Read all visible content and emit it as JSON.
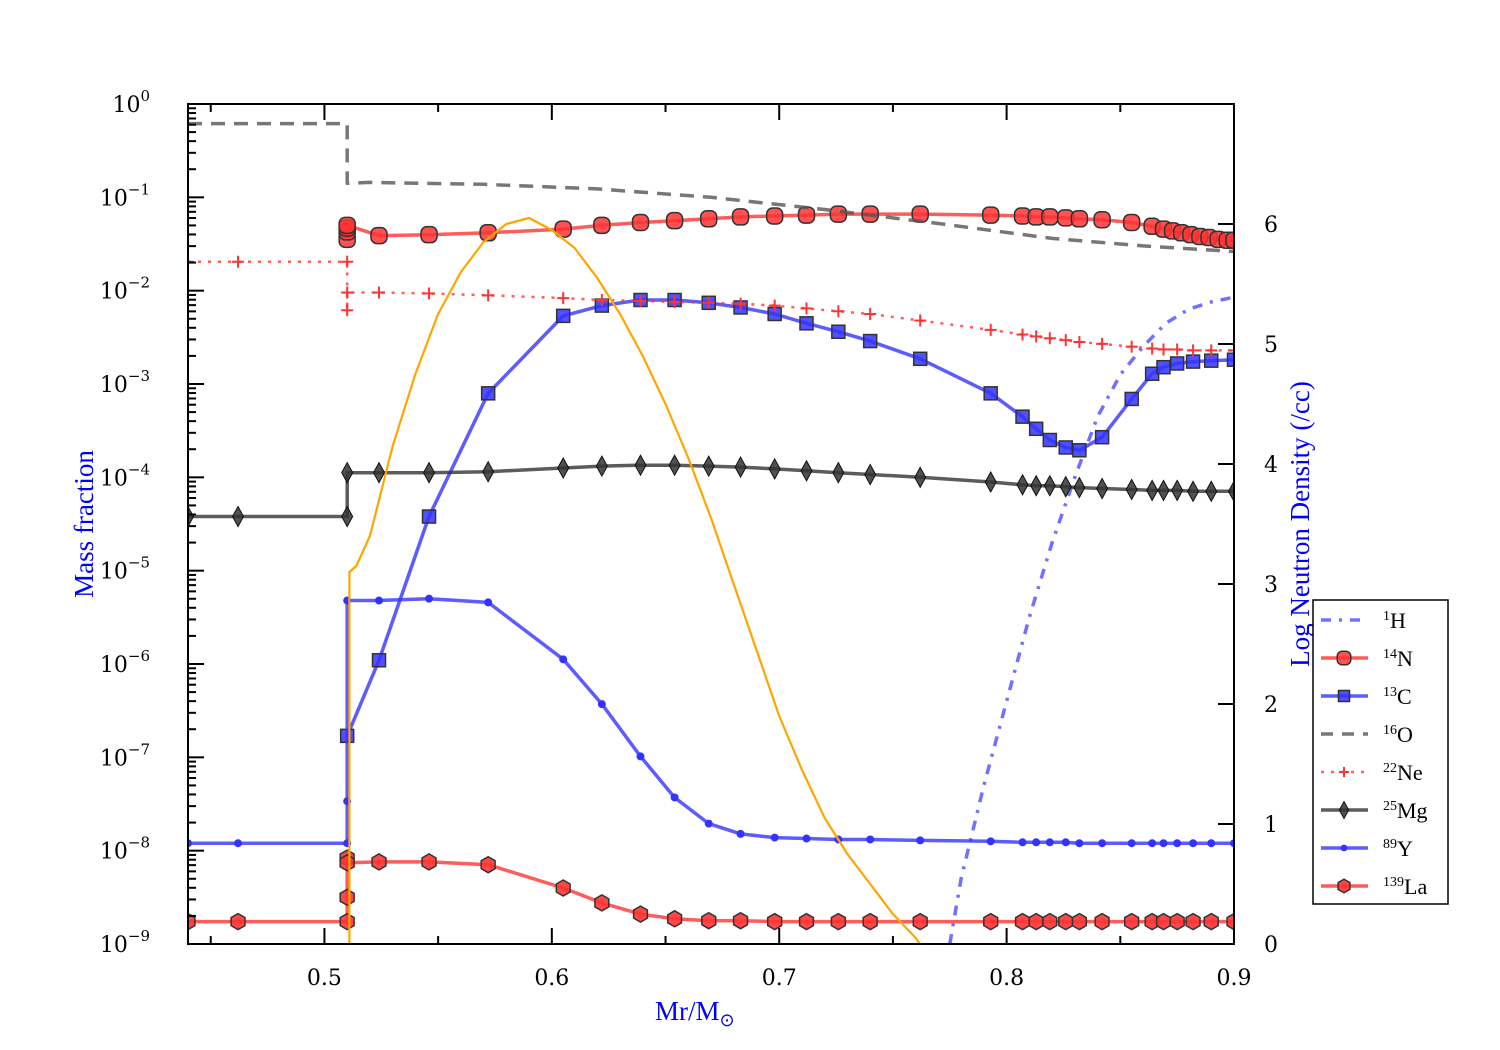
{
  "chart_data": {
    "type": "line",
    "title": "",
    "xlabel": "Mr/M",
    "xlabel_sub": "⊙",
    "ylabel": "Mass fraction",
    "y2label": "Log Neutron Density (/cc)",
    "xlim": [
      0.44,
      0.9
    ],
    "ylim_log10": [
      -9,
      0
    ],
    "y2lim": [
      0,
      7.0
    ],
    "x_ticks": [
      "0.5",
      "0.6",
      "0.7",
      "0.8",
      "0.9"
    ],
    "x_tick_values": [
      0.5,
      0.6,
      0.7,
      0.8,
      0.9
    ],
    "y_ticks": [
      {
        "base": "10",
        "exp": "0",
        "value": 0
      },
      {
        "base": "10",
        "exp": "−1",
        "value": -1
      },
      {
        "base": "10",
        "exp": "−2",
        "value": -2
      },
      {
        "base": "10",
        "exp": "−3",
        "value": -3
      },
      {
        "base": "10",
        "exp": "−4",
        "value": -4
      },
      {
        "base": "10",
        "exp": "−5",
        "value": -5
      },
      {
        "base": "10",
        "exp": "−6",
        "value": -6
      },
      {
        "base": "10",
        "exp": "−7",
        "value": -7
      },
      {
        "base": "10",
        "exp": "−8",
        "value": -8
      },
      {
        "base": "10",
        "exp": "−9",
        "value": -9
      }
    ],
    "y2_ticks": [
      "0",
      "1",
      "2",
      "3",
      "4",
      "5",
      "6"
    ],
    "y2_tick_values": [
      0,
      1,
      2,
      3,
      4,
      5,
      6
    ],
    "grid": false,
    "legend_position": "right",
    "series": [
      {
        "name": "1H",
        "label_sup": "1",
        "label_base": "H",
        "color": "#4d4dff",
        "style": "dashdot",
        "marker": "none",
        "axis": "left",
        "x": [
          0.775,
          0.78,
          0.79,
          0.8,
          0.81,
          0.82,
          0.83,
          0.84,
          0.85,
          0.86,
          0.87,
          0.88,
          0.89,
          0.9
        ],
        "log10_y": [
          -9.0,
          -8.3,
          -7.3,
          -6.4,
          -5.5,
          -4.7,
          -4.0,
          -3.35,
          -2.9,
          -2.6,
          -2.35,
          -2.2,
          -2.12,
          -2.07
        ]
      },
      {
        "name": "14N",
        "label_sup": "14",
        "label_base": "N",
        "color": "#ff3333",
        "style": "solid",
        "marker": "circle",
        "axis": "left",
        "x": [
          0.51,
          0.51,
          0.51,
          0.51,
          0.524,
          0.546,
          0.572,
          0.605,
          0.622,
          0.639,
          0.654,
          0.669,
          0.683,
          0.698,
          0.712,
          0.726,
          0.74,
          0.762,
          0.793,
          0.807,
          0.813,
          0.819,
          0.826,
          0.832,
          0.842,
          0.855,
          0.864,
          0.869,
          0.873,
          0.877,
          0.881,
          0.885,
          0.889,
          0.893,
          0.897,
          0.9
        ],
        "log10_y": [
          -1.45,
          -1.37,
          -1.33,
          -1.3,
          -1.41,
          -1.4,
          -1.38,
          -1.34,
          -1.3,
          -1.27,
          -1.25,
          -1.23,
          -1.21,
          -1.2,
          -1.19,
          -1.18,
          -1.18,
          -1.18,
          -1.19,
          -1.2,
          -1.21,
          -1.21,
          -1.22,
          -1.23,
          -1.24,
          -1.27,
          -1.31,
          -1.34,
          -1.36,
          -1.38,
          -1.4,
          -1.42,
          -1.43,
          -1.45,
          -1.46,
          -1.46
        ]
      },
      {
        "name": "13C",
        "label_sup": "13",
        "label_base": "C",
        "color": "#3333ff",
        "style": "solid",
        "marker": "square",
        "axis": "left",
        "x": [
          0.51,
          0.524,
          0.546,
          0.572,
          0.605,
          0.622,
          0.639,
          0.654,
          0.669,
          0.683,
          0.698,
          0.712,
          0.726,
          0.74,
          0.762,
          0.793,
          0.807,
          0.813,
          0.819,
          0.826,
          0.832,
          0.842,
          0.855,
          0.864,
          0.869,
          0.875,
          0.882,
          0.89,
          0.9
        ],
        "log10_y": [
          -6.77,
          -5.96,
          -4.42,
          -3.1,
          -2.27,
          -2.16,
          -2.1,
          -2.1,
          -2.13,
          -2.18,
          -2.25,
          -2.35,
          -2.44,
          -2.54,
          -2.73,
          -3.1,
          -3.35,
          -3.48,
          -3.6,
          -3.68,
          -3.71,
          -3.57,
          -3.16,
          -2.89,
          -2.82,
          -2.78,
          -2.76,
          -2.75,
          -2.74
        ]
      },
      {
        "name": "16O",
        "label_sup": "16",
        "label_base": "O",
        "color": "#555555",
        "style": "dashed",
        "marker": "none",
        "axis": "left",
        "x": [
          0.44,
          0.51,
          0.51,
          0.52,
          0.57,
          0.62,
          0.67,
          0.72,
          0.77,
          0.82,
          0.86,
          0.9
        ],
        "log10_y": [
          -0.21,
          -0.21,
          -0.85,
          -0.84,
          -0.86,
          -0.91,
          -1.0,
          -1.13,
          -1.28,
          -1.44,
          -1.52,
          -1.58
        ]
      },
      {
        "name": "22Ne",
        "label_sup": "22",
        "label_base": "Ne",
        "color": "#ff3333",
        "style": "dotted",
        "marker": "plus",
        "axis": "left",
        "x": [
          0.44,
          0.462,
          0.51,
          0.51,
          0.51,
          0.524,
          0.546,
          0.572,
          0.605,
          0.622,
          0.639,
          0.654,
          0.669,
          0.683,
          0.698,
          0.712,
          0.726,
          0.74,
          0.762,
          0.793,
          0.807,
          0.813,
          0.819,
          0.826,
          0.832,
          0.842,
          0.855,
          0.864,
          0.869,
          0.875,
          0.882,
          0.89,
          0.9
        ],
        "log10_y": [
          -1.69,
          -1.69,
          -1.69,
          -2.21,
          -2.02,
          -2.02,
          -2.03,
          -2.05,
          -2.08,
          -2.1,
          -2.11,
          -2.12,
          -2.13,
          -2.14,
          -2.16,
          -2.19,
          -2.22,
          -2.25,
          -2.32,
          -2.42,
          -2.47,
          -2.49,
          -2.51,
          -2.53,
          -2.55,
          -2.57,
          -2.6,
          -2.62,
          -2.63,
          -2.63,
          -2.64,
          -2.64,
          -2.64
        ]
      },
      {
        "name": "25Mg",
        "label_sup": "25",
        "label_base": "Mg",
        "color": "#333333",
        "style": "solid",
        "marker": "diamond",
        "axis": "left",
        "x": [
          0.44,
          0.462,
          0.51,
          0.51,
          0.524,
          0.546,
          0.572,
          0.605,
          0.622,
          0.639,
          0.654,
          0.669,
          0.683,
          0.698,
          0.712,
          0.726,
          0.74,
          0.762,
          0.793,
          0.807,
          0.813,
          0.819,
          0.826,
          0.832,
          0.842,
          0.855,
          0.864,
          0.869,
          0.875,
          0.882,
          0.89,
          0.9
        ],
        "log10_y": [
          -4.42,
          -4.42,
          -4.42,
          -3.95,
          -3.95,
          -3.95,
          -3.94,
          -3.9,
          -3.88,
          -3.87,
          -3.87,
          -3.88,
          -3.89,
          -3.91,
          -3.93,
          -3.95,
          -3.97,
          -4.0,
          -4.05,
          -4.08,
          -4.09,
          -4.09,
          -4.1,
          -4.11,
          -4.12,
          -4.13,
          -4.14,
          -4.14,
          -4.14,
          -4.15,
          -4.15,
          -4.15
        ]
      },
      {
        "name": "89Y",
        "label_sup": "89",
        "label_base": "Y",
        "color": "#3333ff",
        "style": "solid",
        "marker": "dot",
        "axis": "left",
        "x": [
          0.44,
          0.462,
          0.51,
          0.51,
          0.51,
          0.524,
          0.546,
          0.572,
          0.605,
          0.622,
          0.639,
          0.654,
          0.669,
          0.683,
          0.698,
          0.712,
          0.726,
          0.74,
          0.762,
          0.793,
          0.807,
          0.813,
          0.819,
          0.826,
          0.832,
          0.842,
          0.855,
          0.864,
          0.869,
          0.875,
          0.882,
          0.89,
          0.9
        ],
        "log10_y": [
          -7.92,
          -7.92,
          -7.92,
          -7.47,
          -5.32,
          -5.32,
          -5.3,
          -5.34,
          -5.95,
          -6.43,
          -6.99,
          -7.43,
          -7.71,
          -7.82,
          -7.86,
          -7.87,
          -7.88,
          -7.88,
          -7.89,
          -7.9,
          -7.91,
          -7.91,
          -7.91,
          -7.91,
          -7.92,
          -7.92,
          -7.92,
          -7.92,
          -7.92,
          -7.92,
          -7.92,
          -7.92,
          -7.92
        ]
      },
      {
        "name": "139La",
        "label_sup": "139",
        "label_base": "La",
        "color": "#ff3333",
        "style": "solid",
        "marker": "hexagon",
        "axis": "left",
        "x": [
          0.44,
          0.462,
          0.51,
          0.51,
          0.51,
          0.51,
          0.524,
          0.546,
          0.572,
          0.605,
          0.622,
          0.639,
          0.654,
          0.669,
          0.683,
          0.698,
          0.712,
          0.726,
          0.74,
          0.762,
          0.793,
          0.807,
          0.813,
          0.819,
          0.826,
          0.832,
          0.842,
          0.855,
          0.864,
          0.869,
          0.875,
          0.882,
          0.89,
          0.9
        ],
        "log10_y": [
          -8.76,
          -8.76,
          -8.76,
          -8.5,
          -8.08,
          -8.13,
          -8.12,
          -8.12,
          -8.15,
          -8.4,
          -8.56,
          -8.68,
          -8.73,
          -8.75,
          -8.75,
          -8.76,
          -8.76,
          -8.76,
          -8.76,
          -8.76,
          -8.76,
          -8.76,
          -8.76,
          -8.76,
          -8.76,
          -8.76,
          -8.76,
          -8.76,
          -8.76,
          -8.76,
          -8.76,
          -8.76,
          -8.76,
          -8.76
        ]
      },
      {
        "name": "Log Neutron Density",
        "color": "#ffa500",
        "style": "solid",
        "marker": "none",
        "axis": "right",
        "in_legend": false,
        "x": [
          0.511,
          0.511,
          0.514,
          0.52,
          0.53,
          0.54,
          0.55,
          0.56,
          0.57,
          0.58,
          0.59,
          0.6,
          0.61,
          0.62,
          0.63,
          0.64,
          0.65,
          0.66,
          0.67,
          0.68,
          0.69,
          0.7,
          0.71,
          0.72,
          0.73,
          0.74,
          0.75,
          0.76,
          0.762
        ],
        "y": [
          0.0,
          3.1,
          3.15,
          3.4,
          4.15,
          4.75,
          5.25,
          5.6,
          5.85,
          6.0,
          6.05,
          5.95,
          5.8,
          5.55,
          5.25,
          4.9,
          4.5,
          4.05,
          3.55,
          3.0,
          2.45,
          1.9,
          1.45,
          1.05,
          0.75,
          0.5,
          0.25,
          0.05,
          0.0
        ]
      }
    ]
  }
}
